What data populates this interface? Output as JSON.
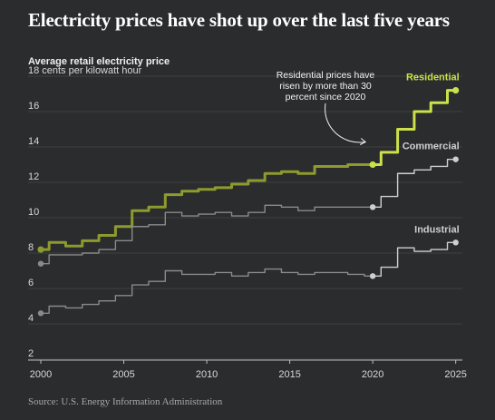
{
  "header": {
    "title": "Electricity prices have shot up over the last five years",
    "subtitle": "Average retail electricity price"
  },
  "source": "Source: U.S. Energy Information Administration",
  "colors": {
    "background": "#2a2c2d",
    "residential": "#cbe04a",
    "residential_pre2020": "#8f9a2e",
    "commercial": "#cfcfcf",
    "industrial": "#cfcfcf",
    "gray_pre2020": "#8a8a8a",
    "grid": "#3f4142"
  },
  "chart_data": {
    "type": "line",
    "title": "Electricity prices have shot up over the last five years",
    "ylabel": "Average retail electricity price",
    "y_unit_label": "cents per kilowatt hour",
    "xlim": [
      2000,
      2025.4
    ],
    "ylim": [
      2,
      18
    ],
    "y_ticks": [
      2,
      4,
      6,
      8,
      10,
      12,
      14,
      16,
      18
    ],
    "x_ticks": [
      2000,
      2005,
      2010,
      2015,
      2020,
      2025
    ],
    "grid": true,
    "highlight_from": 2020,
    "series": [
      {
        "name": "Residential",
        "x": [
          2000,
          2001,
          2002,
          2003,
          2004,
          2005,
          2006,
          2007,
          2008,
          2009,
          2010,
          2011,
          2012,
          2013,
          2014,
          2015,
          2016,
          2017,
          2018,
          2019,
          2020,
          2021,
          2022,
          2023,
          2024,
          2025
        ],
        "values": [
          8.2,
          8.6,
          8.4,
          8.7,
          9.0,
          9.5,
          10.4,
          10.6,
          11.3,
          11.5,
          11.6,
          11.7,
          11.9,
          12.1,
          12.5,
          12.6,
          12.5,
          12.9,
          12.9,
          13.0,
          13.0,
          13.7,
          15.0,
          16.0,
          16.5,
          17.2
        ]
      },
      {
        "name": "Commercial",
        "x": [
          2000,
          2001,
          2002,
          2003,
          2004,
          2005,
          2006,
          2007,
          2008,
          2009,
          2010,
          2011,
          2012,
          2013,
          2014,
          2015,
          2016,
          2017,
          2018,
          2019,
          2020,
          2021,
          2022,
          2023,
          2024,
          2025
        ],
        "values": [
          7.4,
          7.9,
          7.9,
          8.0,
          8.2,
          8.7,
          9.5,
          9.6,
          10.3,
          10.1,
          10.2,
          10.3,
          10.1,
          10.3,
          10.7,
          10.6,
          10.4,
          10.6,
          10.6,
          10.6,
          10.6,
          11.2,
          12.5,
          12.7,
          12.9,
          13.3
        ]
      },
      {
        "name": "Industrial",
        "x": [
          2000,
          2001,
          2002,
          2003,
          2004,
          2005,
          2006,
          2007,
          2008,
          2009,
          2010,
          2011,
          2012,
          2013,
          2014,
          2015,
          2016,
          2017,
          2018,
          2019,
          2020,
          2021,
          2022,
          2023,
          2024,
          2025
        ],
        "values": [
          4.6,
          5.0,
          4.9,
          5.1,
          5.3,
          5.6,
          6.2,
          6.4,
          7.0,
          6.8,
          6.8,
          6.9,
          6.7,
          6.9,
          7.1,
          6.9,
          6.8,
          6.9,
          6.9,
          6.8,
          6.7,
          7.2,
          8.3,
          8.1,
          8.2,
          8.6
        ]
      }
    ],
    "annotations": [
      {
        "lines": [
          "Residential prices have",
          "risen by more than 30",
          "percent since 2020"
        ],
        "target": {
          "x": 2020,
          "y": 13.0
        }
      }
    ]
  }
}
